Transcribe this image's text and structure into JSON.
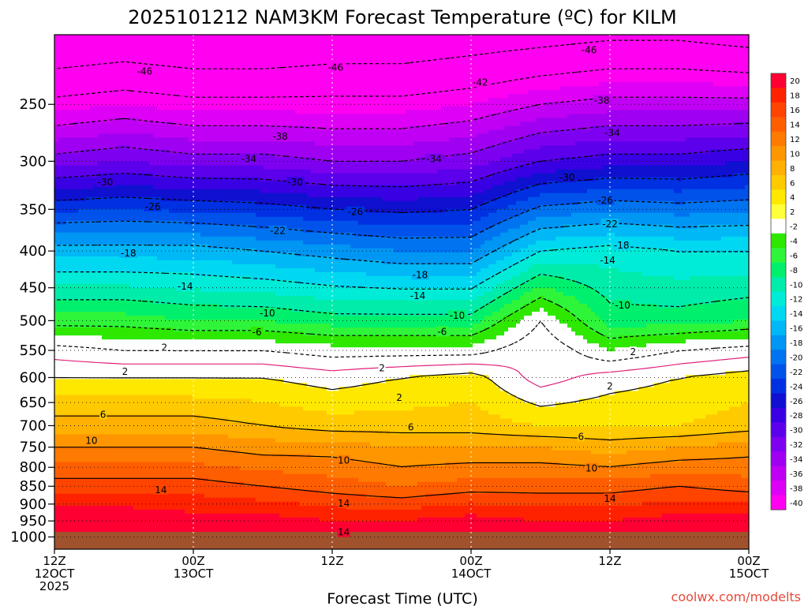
{
  "chart_data": {
    "type": "heatmap",
    "title": "2025101212 NAM3KM Forecast Temperature (ºC) for KILM",
    "xlabel": "Forecast Time (UTC)",
    "ylabel": "",
    "credit": "coolwx.com/modelts",
    "y_scale": "log-pressure",
    "y_ticks": [
      250,
      300,
      350,
      400,
      450,
      500,
      550,
      600,
      650,
      700,
      750,
      800,
      850,
      900,
      950,
      1000
    ],
    "ylim_hpa": [
      1040,
      200
    ],
    "xlim_hours": [
      0,
      60
    ],
    "x_ticks": [
      {
        "hour": 0,
        "lines": [
          "12Z",
          "12OCT",
          "2025"
        ]
      },
      {
        "hour": 12,
        "lines": [
          "00Z",
          "13OCT"
        ]
      },
      {
        "hour": 24,
        "lines": [
          "12Z"
        ]
      },
      {
        "hour": 36,
        "lines": [
          "00Z",
          "14OCT"
        ]
      },
      {
        "hour": 48,
        "lines": [
          "12Z"
        ]
      },
      {
        "hour": 60,
        "lines": [
          "00Z",
          "15OCT"
        ]
      }
    ],
    "grid": true,
    "colorbar": {
      "placement": "right",
      "labels": [
        "20",
        "18",
        "16",
        "14",
        "12",
        "10",
        "8",
        "6",
        "4",
        "2",
        "-2",
        "-4",
        "-6",
        "-8",
        "-10",
        "-12",
        "-14",
        "-16",
        "-18",
        "-20",
        "-22",
        "-24",
        "-26",
        "-28",
        "-30",
        "-32",
        "-34",
        "-36",
        "-38",
        "-40"
      ],
      "colors": [
        "#ff0033",
        "#ff2200",
        "#ff4400",
        "#ff5e00",
        "#ff7a00",
        "#ff9600",
        "#ffb000",
        "#ffca00",
        "#ffe800",
        "#ffff3c",
        "#ffffff",
        "#2ee800",
        "#2ef53a",
        "#00f06e",
        "#00ecaa",
        "#00ecd8",
        "#00d8f2",
        "#00b8f6",
        "#0096f4",
        "#0074f0",
        "#0052ea",
        "#0030e2",
        "#1010d0",
        "#3a00e4",
        "#5c00ec",
        "#7e00f0",
        "#a000f2",
        "#c000f4",
        "#df00f6",
        "#ff00f0"
      ]
    },
    "surface_color": "#a0522d",
    "series": [
      {
        "level": 950,
        "values": [
          20,
          20,
          19,
          19,
          18,
          18,
          19,
          18,
          18,
          19,
          19
        ]
      },
      {
        "level": 850,
        "values": [
          15,
          15,
          15,
          14,
          13,
          12,
          13,
          13,
          13,
          14,
          13
        ]
      },
      {
        "level": 750,
        "values": [
          10,
          10,
          10,
          9,
          9,
          8,
          8,
          8,
          7,
          8,
          9
        ]
      },
      {
        "level": 700,
        "values": [
          7,
          7,
          7,
          6,
          5,
          5,
          5,
          4,
          4,
          4,
          5
        ]
      },
      {
        "level": 600,
        "values": [
          2,
          2,
          2,
          2,
          1,
          2,
          3,
          -1,
          1,
          2,
          3
        ]
      },
      {
        "level": 550,
        "values": [
          -1,
          -2,
          -2,
          -2,
          -3,
          -3,
          -3,
          0,
          -4,
          -2,
          -1
        ]
      },
      {
        "level": 500,
        "values": [
          -7,
          -7,
          -8,
          -8,
          -9,
          -9,
          -9,
          -2,
          -9,
          -9,
          -8
        ]
      },
      {
        "level": 400,
        "values": [
          -17,
          -17,
          -17,
          -18,
          -19,
          -20,
          -20,
          -14,
          -13,
          -14,
          -14
        ]
      },
      {
        "level": 300,
        "values": [
          -33,
          -32,
          -33,
          -33,
          -34,
          -34,
          -33,
          -30,
          -29,
          -29,
          -28
        ]
      },
      {
        "level": 250,
        "values": [
          -41,
          -40,
          -41,
          -41,
          -41,
          -41,
          -40,
          -38,
          -37,
          -37,
          -37
        ]
      }
    ],
    "contour_labels": [
      {
        "hour": 7.8,
        "hPa": 225,
        "text": "-46"
      },
      {
        "hour": 24.3,
        "hPa": 222,
        "text": "-46"
      },
      {
        "hour": 46.2,
        "hPa": 210,
        "text": "-46"
      },
      {
        "hour": 36.8,
        "hPa": 233,
        "text": "-42"
      },
      {
        "hour": 47.3,
        "hPa": 247,
        "text": "-38"
      },
      {
        "hour": 19.5,
        "hPa": 277,
        "text": "-38"
      },
      {
        "hour": 48.2,
        "hPa": 274,
        "text": "-34"
      },
      {
        "hour": 16.8,
        "hPa": 298,
        "text": "-34"
      },
      {
        "hour": 32.8,
        "hPa": 298,
        "text": "-34"
      },
      {
        "hour": 4.4,
        "hPa": 321,
        "text": "-30"
      },
      {
        "hour": 20.8,
        "hPa": 321,
        "text": "-30"
      },
      {
        "hour": 44.3,
        "hPa": 316,
        "text": "-30"
      },
      {
        "hour": 8.5,
        "hPa": 347,
        "text": "-26"
      },
      {
        "hour": 26.0,
        "hPa": 353,
        "text": "-26"
      },
      {
        "hour": 47.6,
        "hPa": 340,
        "text": "-26"
      },
      {
        "hour": 19.3,
        "hPa": 375,
        "text": "-22"
      },
      {
        "hour": 48.0,
        "hPa": 367,
        "text": "-22"
      },
      {
        "hour": 6.4,
        "hPa": 403,
        "text": "-18"
      },
      {
        "hour": 31.6,
        "hPa": 432,
        "text": "-18"
      },
      {
        "hour": 49.0,
        "hPa": 393,
        "text": "-18"
      },
      {
        "hour": 11.3,
        "hPa": 448,
        "text": "-14"
      },
      {
        "hour": 31.4,
        "hPa": 462,
        "text": "-14"
      },
      {
        "hour": 47.8,
        "hPa": 412,
        "text": "-14"
      },
      {
        "hour": 18.4,
        "hPa": 488,
        "text": "-10"
      },
      {
        "hour": 34.8,
        "hPa": 492,
        "text": "-10"
      },
      {
        "hour": 49.1,
        "hPa": 476,
        "text": "-10"
      },
      {
        "hour": 17.5,
        "hPa": 519,
        "text": "-6"
      },
      {
        "hour": 33.5,
        "hPa": 518,
        "text": "-6"
      },
      {
        "hour": 9.5,
        "hPa": 545,
        "text": "2"
      },
      {
        "hour": 6.1,
        "hPa": 589,
        "text": "2"
      },
      {
        "hour": 28.3,
        "hPa": 582,
        "text": "2"
      },
      {
        "hour": 29.8,
        "hPa": 640,
        "text": "2"
      },
      {
        "hour": 50.0,
        "hPa": 553,
        "text": "2"
      },
      {
        "hour": 48.0,
        "hPa": 617,
        "text": "2"
      },
      {
        "hour": 4.2,
        "hPa": 676,
        "text": "6"
      },
      {
        "hour": 30.8,
        "hPa": 704,
        "text": "6"
      },
      {
        "hour": 45.5,
        "hPa": 725,
        "text": "6"
      },
      {
        "hour": 3.2,
        "hPa": 735,
        "text": "10"
      },
      {
        "hour": 25.0,
        "hPa": 783,
        "text": "10"
      },
      {
        "hour": 46.4,
        "hPa": 803,
        "text": "10"
      },
      {
        "hour": 9.2,
        "hPa": 860,
        "text": "14"
      },
      {
        "hour": 25.0,
        "hPa": 898,
        "text": "14"
      },
      {
        "hour": 25.0,
        "hPa": 985,
        "text": "14"
      },
      {
        "hour": 48.0,
        "hPa": 885,
        "text": "14"
      }
    ]
  }
}
